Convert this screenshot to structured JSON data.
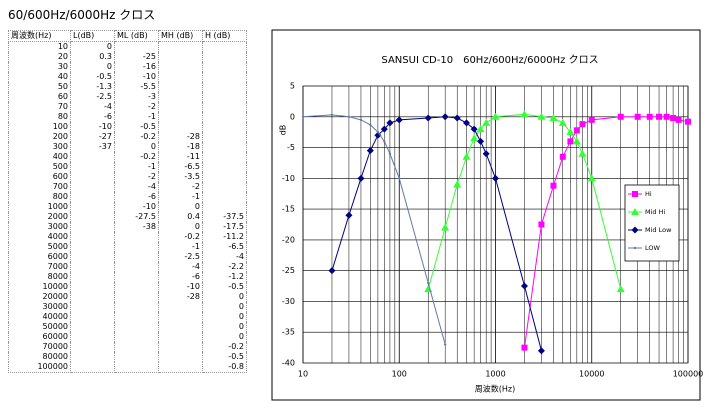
{
  "title": "60/600Hz/6000Hz クロス",
  "table": {
    "header": [
      "周波数(Hz)",
      "L(dB)",
      "ML (dB)",
      "MH (dB)",
      "H (dB)"
    ],
    "rows": [
      [
        10,
        0,
        null,
        null,
        null
      ],
      [
        20,
        0.3,
        -25,
        null,
        null
      ],
      [
        30,
        0,
        -16,
        null,
        null
      ],
      [
        40,
        -0.5,
        -10,
        null,
        null
      ],
      [
        50,
        -1.3,
        -5.5,
        null,
        null
      ],
      [
        60,
        -2.5,
        -3,
        null,
        null
      ],
      [
        70,
        -4,
        -2,
        null,
        null
      ],
      [
        80,
        -6,
        -1,
        null,
        null
      ],
      [
        100,
        -10,
        -0.5,
        null,
        null
      ],
      [
        200,
        -27,
        -0.2,
        -28,
        null
      ],
      [
        300,
        -37,
        0,
        -18,
        null
      ],
      [
        400,
        null,
        -0.2,
        -11,
        null
      ],
      [
        500,
        null,
        -1,
        -6.5,
        null
      ],
      [
        600,
        null,
        -2,
        -3.5,
        null
      ],
      [
        700,
        null,
        -4,
        -2,
        null
      ],
      [
        800,
        null,
        -6,
        -1,
        null
      ],
      [
        1000,
        null,
        -10,
        0,
        null
      ],
      [
        2000,
        null,
        -27.5,
        0.4,
        -37.5
      ],
      [
        3000,
        null,
        -38,
        0,
        -17.5
      ],
      [
        4000,
        null,
        null,
        -0.2,
        -11.2
      ],
      [
        5000,
        null,
        null,
        -1,
        -6.5
      ],
      [
        6000,
        null,
        null,
        -2.5,
        -4
      ],
      [
        7000,
        null,
        null,
        -4,
        -2.2
      ],
      [
        8000,
        null,
        null,
        -6,
        -1.2
      ],
      [
        10000,
        null,
        null,
        -10,
        -0.5
      ],
      [
        20000,
        null,
        null,
        -28,
        0
      ],
      [
        30000,
        null,
        null,
        null,
        0
      ],
      [
        40000,
        null,
        null,
        null,
        0
      ],
      [
        50000,
        null,
        null,
        null,
        0
      ],
      [
        60000,
        null,
        null,
        null,
        0
      ],
      [
        70000,
        null,
        null,
        null,
        -0.2
      ],
      [
        80000,
        null,
        null,
        null,
        -0.5
      ],
      [
        100000,
        null,
        null,
        null,
        -0.8
      ]
    ]
  },
  "chart_data": {
    "type": "line",
    "title": "SANSUI CD-10　60Hz/600Hz/6000Hz クロス",
    "x_label": "周波数(Hz)",
    "y_label": "dB",
    "x": [
      10,
      20,
      30,
      40,
      50,
      60,
      70,
      80,
      100,
      200,
      300,
      400,
      500,
      600,
      700,
      800,
      1000,
      2000,
      3000,
      4000,
      5000,
      6000,
      7000,
      8000,
      10000,
      20000,
      30000,
      40000,
      50000,
      60000,
      70000,
      80000,
      100000
    ],
    "xlim": [
      10,
      100000
    ],
    "xticks": [
      10,
      100,
      1000,
      10000,
      100000
    ],
    "log_x": true,
    "x_minor_grid": true,
    "ylim": [
      -40,
      5
    ],
    "yticks": [
      5,
      0,
      -5,
      -10,
      -15,
      -20,
      -25,
      -30,
      -35,
      -40
    ],
    "grid": true,
    "legend": "right",
    "series": [
      {
        "name": "Hi",
        "color": "#ff00ff",
        "marker": "square",
        "values": [
          null,
          null,
          null,
          null,
          null,
          null,
          null,
          null,
          null,
          null,
          null,
          null,
          null,
          null,
          null,
          null,
          null,
          -37.5,
          -17.5,
          -11.2,
          -6.5,
          -4,
          -2.2,
          -1.2,
          -0.5,
          0,
          0,
          0,
          0,
          0,
          -0.2,
          -0.5,
          -0.8
        ]
      },
      {
        "name": "Mid Hi",
        "color": "#33ff33",
        "marker": "triangle",
        "values": [
          null,
          null,
          null,
          null,
          null,
          null,
          null,
          null,
          null,
          -28,
          -18,
          -11,
          -6.5,
          -3.5,
          -2,
          -1,
          0,
          0.4,
          0,
          -0.2,
          -1,
          -2.5,
          -4,
          -6,
          -10,
          -28,
          null,
          null,
          null,
          null,
          null,
          null,
          null
        ]
      },
      {
        "name": "Mid Low",
        "color": "#000080",
        "marker": "diamond",
        "values": [
          null,
          -25,
          -16,
          -10,
          -5.5,
          -3,
          -2,
          -1,
          -0.5,
          -0.2,
          0,
          -0.2,
          -1,
          -2,
          -4,
          -6,
          -10,
          -27.5,
          -38,
          null,
          null,
          null,
          null,
          null,
          null,
          null,
          null,
          null,
          null,
          null,
          null,
          null,
          null
        ]
      },
      {
        "name": "LOW",
        "color": "#6677aa",
        "marker": "dot",
        "values": [
          0,
          0.3,
          0,
          -0.5,
          -1.3,
          -2.5,
          -4,
          -6,
          -10,
          -27,
          -37,
          null,
          null,
          null,
          null,
          null,
          null,
          null,
          null,
          null,
          null,
          null,
          null,
          null,
          null,
          null,
          null,
          null,
          null,
          null,
          null,
          null,
          null
        ]
      }
    ]
  }
}
